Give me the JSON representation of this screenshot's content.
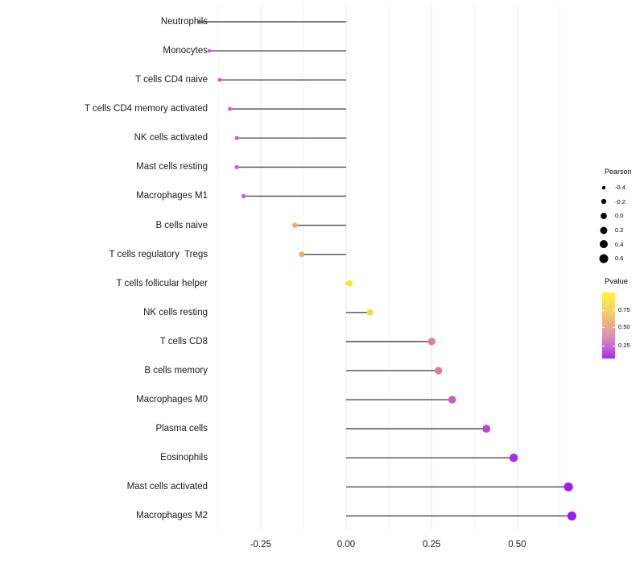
{
  "chart_data": {
    "type": "scatter",
    "variant": "lollipop",
    "title": "",
    "xlabel": "",
    "ylabel": "",
    "xlim": [
      -0.39,
      0.7
    ],
    "grid": "vertical-only",
    "x_major_ticks": [
      {
        "value": -0.25,
        "label": "-0.25"
      },
      {
        "value": 0.0,
        "label": "0.00"
      },
      {
        "value": 0.25,
        "label": "0.25"
      },
      {
        "value": 0.5,
        "label": "0.50"
      }
    ],
    "x_minor_gridlines": [
      -0.375,
      -0.125,
      0.125,
      0.375,
      0.625
    ],
    "rows": [
      {
        "label": "Neutrophils",
        "pearson": -0.43,
        "color": "#c55fc3"
      },
      {
        "label": "Monocytes",
        "pearson": -0.4,
        "color": "#c55fc3"
      },
      {
        "label": "T cells CD4 naive",
        "pearson": -0.37,
        "color": "#c45fc6"
      },
      {
        "label": "T cells CD4 memory activated",
        "pearson": -0.34,
        "color": "#c662c4"
      },
      {
        "label": "NK cells activated",
        "pearson": -0.32,
        "color": "#c765c7"
      },
      {
        "label": "Mast cells resting",
        "pearson": -0.32,
        "color": "#ca62bd"
      },
      {
        "label": "Macrophages M1",
        "pearson": -0.3,
        "color": "#c95fbe"
      },
      {
        "label": "B cells naive",
        "pearson": -0.15,
        "color": "#eab06c"
      },
      {
        "label": "T cells regulatory  Tregs",
        "pearson": -0.13,
        "color": "#eaae68"
      },
      {
        "label": "T cells follicular helper",
        "pearson": 0.01,
        "color": "#f6ee12"
      },
      {
        "label": "NK cells resting",
        "pearson": 0.07,
        "color": "#f0dd4e"
      },
      {
        "label": "T cells CD8",
        "pearson": 0.25,
        "color": "#e0818f"
      },
      {
        "label": "B cells memory",
        "pearson": 0.27,
        "color": "#e07f92"
      },
      {
        "label": "Macrophages M0",
        "pearson": 0.31,
        "color": "#d55cb2"
      },
      {
        "label": "Plasma cells",
        "pearson": 0.41,
        "color": "#bc43d8"
      },
      {
        "label": "Eosinophils",
        "pearson": 0.49,
        "color": "#a62be2"
      },
      {
        "label": "Mast cells activated",
        "pearson": 0.65,
        "color": "#9a21ec"
      },
      {
        "label": "Macrophages M2",
        "pearson": 0.66,
        "color": "#9a1fee"
      }
    ],
    "legend_size": {
      "title": "Pearson",
      "entries": [
        {
          "value": -0.4,
          "label": "-0.4"
        },
        {
          "value": -0.2,
          "label": "-0.2"
        },
        {
          "value": 0.0,
          "label": "0.0"
        },
        {
          "value": 0.2,
          "label": "0.2"
        },
        {
          "value": 0.4,
          "label": "0.4"
        },
        {
          "value": 0.6,
          "label": "0.6"
        }
      ],
      "dot_color": "#000000"
    },
    "legend_color": {
      "title": "Pvalue",
      "ticks": [
        {
          "label": "0.75",
          "frac_from_top": 0.27
        },
        {
          "label": "0.50",
          "frac_from_top": 0.53
        },
        {
          "label": "0.25",
          "frac_from_top": 0.8
        }
      ],
      "gradient_top_color": "#fbf637",
      "gradient_bottom_color": "#a52fef"
    },
    "stem_color": "#4d4d4d",
    "gridline_major_color": "#e9e9e9",
    "gridline_minor_color": "#f3f3f3"
  }
}
